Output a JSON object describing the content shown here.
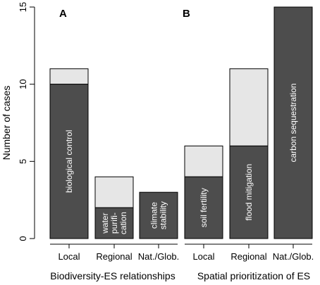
{
  "chart_data": {
    "type": "bar",
    "stacked": true,
    "ylabel": "Number of cases",
    "ylim": [
      0,
      15
    ],
    "yticks": [
      0,
      5,
      10,
      15
    ],
    "colors": {
      "dark": "#4d4d4d",
      "light": "#e6e6e6",
      "axis": "#000000"
    },
    "panels": [
      {
        "letter": "A",
        "group_label": "Biodiversity-ES relationships",
        "categories": [
          "Local",
          "Regional",
          "Nat./Glob."
        ],
        "bars": [
          {
            "category": "Local",
            "dark": 10,
            "light": 1,
            "label": [
              "biological control"
            ]
          },
          {
            "category": "Regional",
            "dark": 2,
            "light": 2,
            "label": [
              "water",
              "purifi-",
              "cation"
            ]
          },
          {
            "category": "Nat./Glob.",
            "dark": 3,
            "light": 0,
            "label": [
              "climate",
              "stability"
            ]
          }
        ]
      },
      {
        "letter": "B",
        "group_label": "Spatial prioritization of ES",
        "categories": [
          "Local",
          "Regional",
          "Nat./Glob."
        ],
        "bars": [
          {
            "category": "Local",
            "dark": 4,
            "light": 2,
            "label": [
              "soil fertility"
            ]
          },
          {
            "category": "Regional",
            "dark": 6,
            "light": 5,
            "label": [
              "flood mitigation"
            ]
          },
          {
            "category": "Nat./Glob.",
            "dark": 15,
            "light": 0,
            "label": [
              "carbon sequestration"
            ]
          }
        ]
      }
    ]
  }
}
